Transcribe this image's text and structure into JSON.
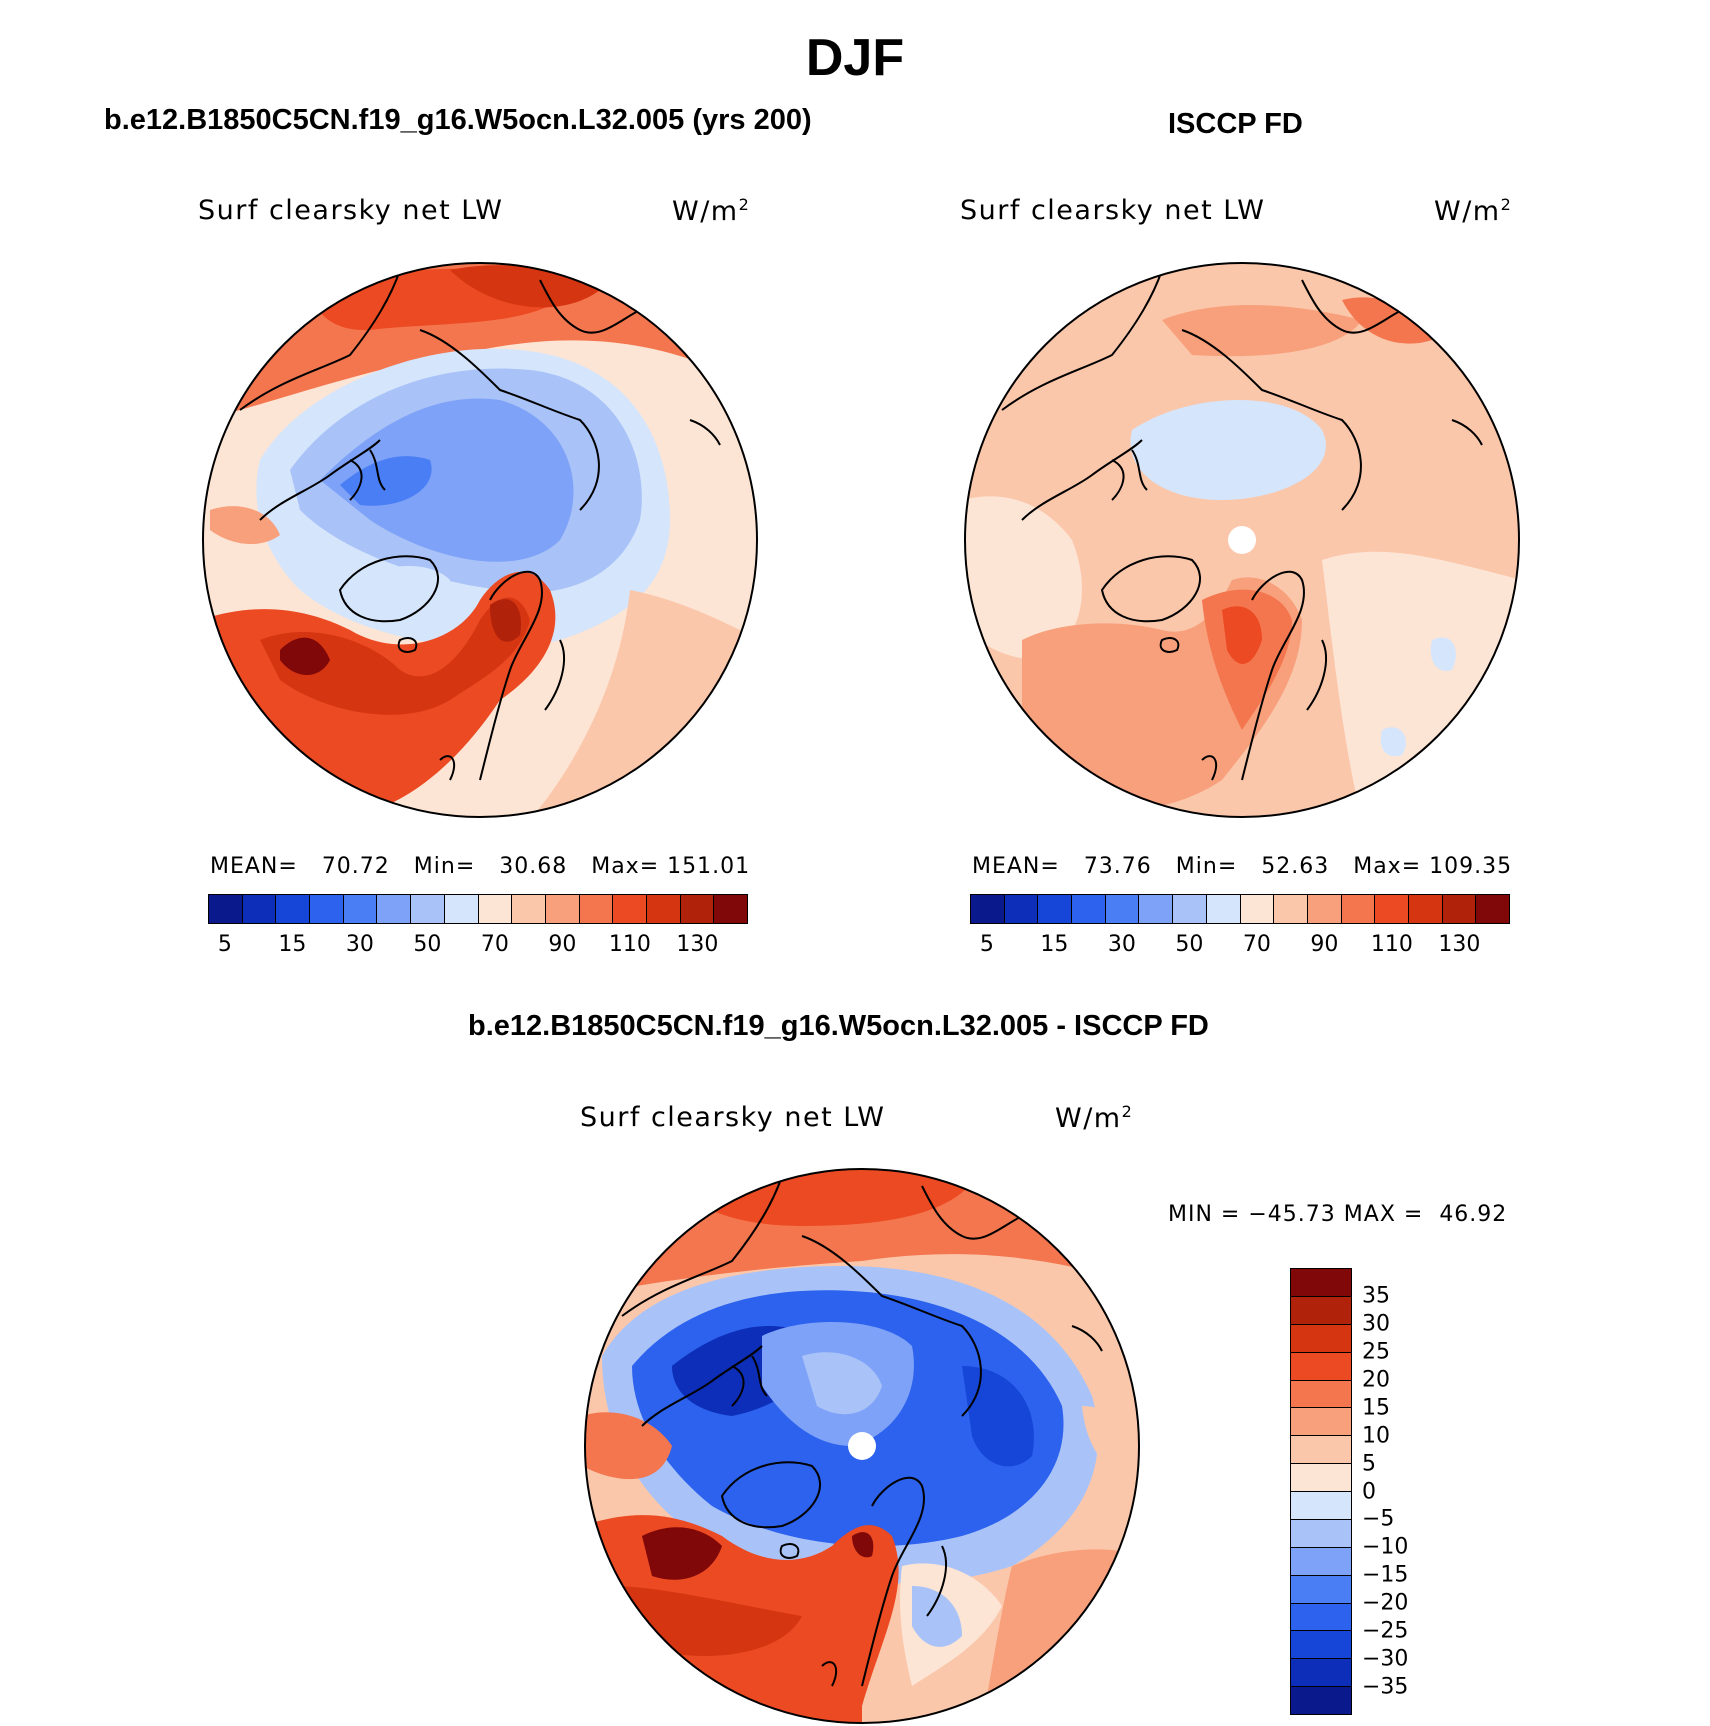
{
  "figure": {
    "title": "DJF"
  },
  "panels": [
    {
      "case_title": "b.e12.B1850C5CN.f19_g16.W5ocn.L32.005 (yrs 200)",
      "label": "Surf clearsky net LW",
      "units": "W/m",
      "units_exp": "2",
      "mean_label": "MEAN=",
      "mean": "70.72",
      "min_label": "Min=",
      "min": "30.68",
      "max_label": "Max=",
      "max": "151.01"
    },
    {
      "case_title": "ISCCP FD",
      "label": "Surf clearsky net LW",
      "units": "W/m",
      "units_exp": "2",
      "mean_label": "MEAN=",
      "mean": "73.76",
      "min_label": "Min=",
      "min": "52.63",
      "max_label": "Max=",
      "max": "109.35"
    },
    {
      "case_title": "b.e12.B1850C5CN.f19_g16.W5ocn.L32.005 - ISCCP FD",
      "label": "Surf clearsky net LW",
      "units": "W/m",
      "units_exp": "2",
      "min_label": "MIN =",
      "min": "−45.73",
      "max_label": "MAX =",
      "max": "46.92"
    }
  ],
  "colorbar_abs": {
    "colors": [
      "#0a1a8c",
      "#0c2eb8",
      "#1646d8",
      "#2c62ee",
      "#4a7ef5",
      "#7ea2f7",
      "#a9c3f8",
      "#d5e5fb",
      "#fde5d5",
      "#fbc7ab",
      "#f8a07c",
      "#f4764f",
      "#ec4a22",
      "#d63512",
      "#b0220a",
      "#800808"
    ],
    "tick_labels": [
      "5",
      "15",
      "30",
      "50",
      "70",
      "90",
      "110",
      "130"
    ]
  },
  "colorbar_diff": {
    "colors": [
      "#800808",
      "#b0220a",
      "#d63512",
      "#ec4a22",
      "#f4764f",
      "#f8a07c",
      "#fbc7ab",
      "#fde5d5",
      "#d5e5fb",
      "#a9c3f8",
      "#7ea2f7",
      "#4a7ef5",
      "#2c62ee",
      "#1646d8",
      "#0c2eb8",
      "#0a1a8c"
    ],
    "tick_labels": [
      "35",
      "30",
      "25",
      "20",
      "15",
      "10",
      "5",
      "0",
      "−5",
      "−10",
      "−15",
      "−20",
      "−25",
      "−30",
      "−35"
    ]
  }
}
